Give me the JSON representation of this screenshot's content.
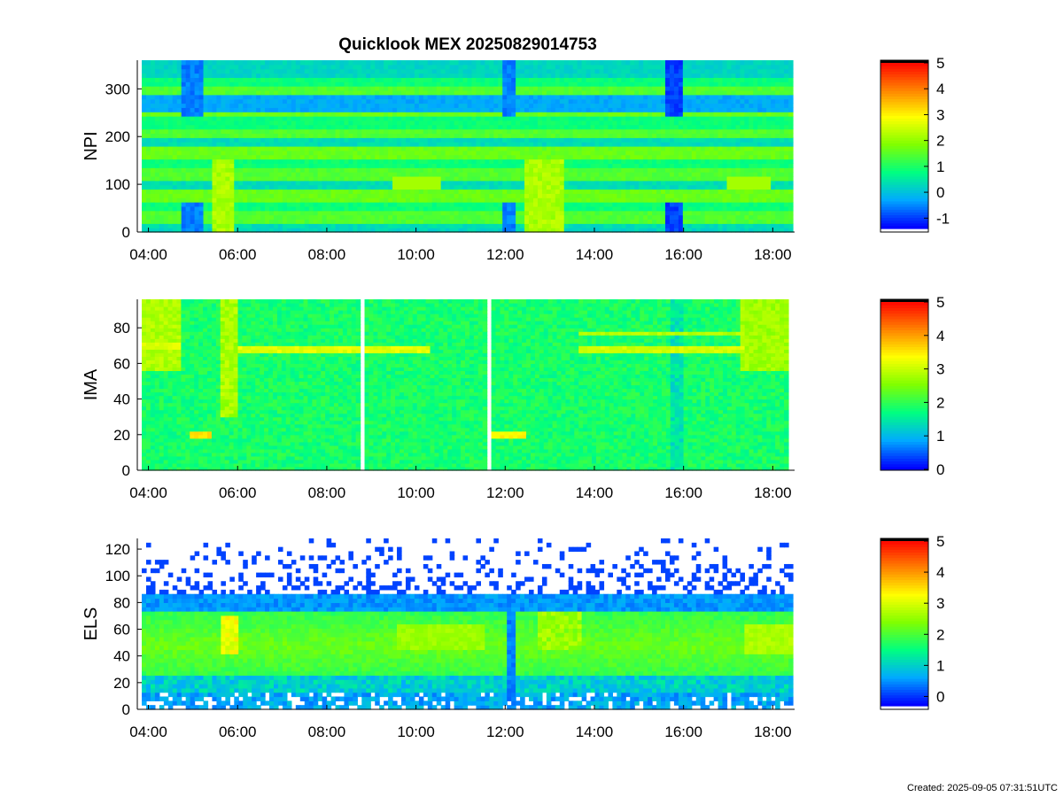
{
  "figure": {
    "title": "Quicklook MEX 20250829014753",
    "footer": "Created: 2025-09-05 07:31:51UTC"
  },
  "colors": {
    "colormap": [
      "#ffffff",
      "#0000ff",
      "#00aaff",
      "#00ff80",
      "#80ff00",
      "#ffff00",
      "#ff8000",
      "#ff0000",
      "#000000"
    ],
    "background": "#ffffff"
  },
  "chart_data": [
    {
      "type": "heatmap",
      "title": "Quicklook MEX 20250829014753",
      "ylabel": "NPI",
      "xlabel": "",
      "x_ticks": [
        "04:00",
        "06:00",
        "08:00",
        "10:00",
        "12:00",
        "14:00",
        "16:00",
        "18:00"
      ],
      "x_range_hours": [
        3.85,
        18.45
      ],
      "y_ticks": [
        0,
        100,
        200,
        300
      ],
      "ylim": [
        0,
        360
      ],
      "colorbar": {
        "ticks": [
          -1,
          0,
          1,
          2,
          3,
          4,
          5
        ],
        "range": [
          -1.4,
          5
        ]
      },
      "features": [
        {
          "kind": "dark_band",
          "hours": [
            4.7,
            5.2
          ],
          "value": -0.8
        },
        {
          "kind": "bright_band",
          "hours": [
            5.4,
            5.9
          ],
          "value": 2.4
        },
        {
          "kind": "dark_band",
          "hours": [
            11.9,
            12.2
          ],
          "value": -0.8
        },
        {
          "kind": "bright_band",
          "hours": [
            12.4,
            13.3
          ],
          "value": 2.4
        },
        {
          "kind": "dark_band",
          "hours": [
            15.6,
            16.0
          ],
          "value": -1.2
        }
      ]
    },
    {
      "type": "heatmap",
      "ylabel": "IMA",
      "xlabel": "",
      "x_ticks": [
        "04:00",
        "06:00",
        "08:00",
        "10:00",
        "12:00",
        "14:00",
        "16:00",
        "18:00"
      ],
      "x_range_hours": [
        3.85,
        18.35
      ],
      "y_ticks": [
        0,
        20,
        40,
        60,
        80
      ],
      "ylim": [
        0,
        96
      ],
      "colorbar": {
        "ticks": [
          0,
          1,
          2,
          3,
          4,
          5
        ],
        "range": [
          0,
          5
        ]
      },
      "data_gaps_hours": [
        [
          8.75,
          8.85
        ],
        [
          11.6,
          11.68
        ]
      ],
      "features": [
        {
          "kind": "ion_line",
          "hours": [
            3.85,
            4.7
          ],
          "level": 70,
          "value": 3.0
        },
        {
          "kind": "ion_line",
          "hours": [
            4.95,
            5.4
          ],
          "level": 20,
          "value": 3.4
        },
        {
          "kind": "ion_line",
          "hours": [
            6.0,
            10.3
          ],
          "level": 68,
          "value": 3.0
        },
        {
          "kind": "ion_line",
          "hours": [
            11.68,
            12.5
          ],
          "level": 20,
          "value": 3.2
        },
        {
          "kind": "ion_line",
          "hours": [
            13.6,
            17.4
          ],
          "level": 68,
          "value": 2.9
        }
      ]
    },
    {
      "type": "heatmap",
      "ylabel": "ELS",
      "xlabel": "",
      "x_ticks": [
        "04:00",
        "06:00",
        "08:00",
        "10:00",
        "12:00",
        "14:00",
        "16:00",
        "18:00"
      ],
      "x_range_hours": [
        3.85,
        18.45
      ],
      "y_ticks": [
        0,
        20,
        40,
        60,
        80,
        100,
        120
      ],
      "ylim": [
        0,
        128
      ],
      "colorbar": {
        "ticks": [
          0,
          1,
          2,
          3,
          4,
          5
        ],
        "range": [
          -0.3,
          5
        ]
      },
      "features": [
        {
          "kind": "electron_peak",
          "hours": [
            5.6,
            6.0
          ],
          "level": 55,
          "value": 3.4
        },
        {
          "kind": "electron_peak",
          "hours": [
            12.7,
            13.7
          ],
          "level": 60,
          "value": 2.8
        },
        {
          "kind": "dark_band",
          "hours": [
            12.05,
            12.25
          ],
          "value": 0.2
        }
      ]
    }
  ]
}
